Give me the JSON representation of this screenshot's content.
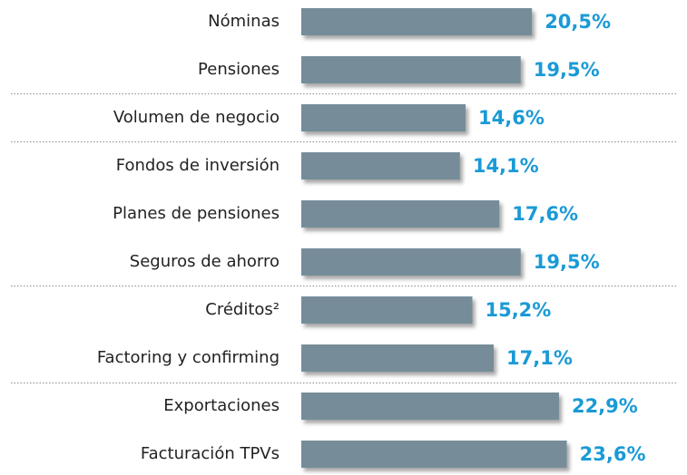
{
  "chart_data": {
    "type": "bar",
    "orientation": "horizontal",
    "categories": [
      "Nóminas",
      "Pensiones",
      "Volumen de negocio",
      "Fondos de inversión",
      "Planes de pensiones",
      "Seguros de ahorro",
      "Créditos²",
      "Factoring y confirming",
      "Exportaciones",
      "Facturación TPVs"
    ],
    "values": [
      20.5,
      19.5,
      14.6,
      14.1,
      17.6,
      19.5,
      15.2,
      17.1,
      22.9,
      23.6
    ],
    "value_labels": [
      "20,5%",
      "19,5%",
      "14,6%",
      "14,1%",
      "17,6%",
      "19,5%",
      "15,2%",
      "17,1%",
      "22,9%",
      "23,6%"
    ],
    "color": "#768d99",
    "label_color": "#1a9ad6"
  }
}
